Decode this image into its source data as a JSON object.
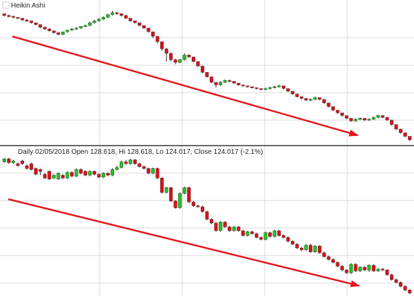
{
  "colors": {
    "up": "#22c322",
    "down": "#d6121b",
    "wick": "#222222",
    "grid": "#d9d9d9",
    "divider": "#333333",
    "trend_arrow": "#e3161d",
    "background": "#ffffff"
  },
  "chart_data": [
    {
      "type": "candlestick",
      "panel": "top",
      "title": "Heikin Ashi",
      "title_icon": "chart-settings-icon",
      "grid": true,
      "trend_arrow": {
        "direction": "down"
      },
      "series": [
        {
          "name": "",
          "open": [
            126.9,
            126.7,
            126.6,
            126.5,
            126.4,
            126.2,
            126.1,
            125.9,
            125.7,
            125.4,
            125.2,
            125.0,
            124.8,
            124.6,
            124.9,
            125.1,
            125.2,
            125.3,
            125.5,
            125.6,
            125.9,
            126.1,
            126.3,
            126.5,
            126.8,
            127.0,
            126.9,
            126.7,
            126.4,
            126.1,
            125.9,
            125.6,
            125.3,
            124.9,
            124.4,
            123.8,
            123.0,
            122.5,
            121.8,
            121.5,
            121.8,
            122.3,
            122.1,
            121.6,
            121.1,
            120.4,
            119.9,
            119.3,
            119.0,
            119.3,
            119.5,
            119.4,
            119.2,
            119.0,
            118.9,
            118.8,
            118.7,
            118.6,
            118.5,
            118.6,
            118.7,
            118.8,
            118.9,
            118.6,
            118.3,
            118.0,
            117.7,
            117.5,
            117.3,
            117.4,
            117.6,
            117.4,
            117.0,
            116.6,
            116.2,
            115.9,
            115.6,
            115.3,
            115.0,
            115.2,
            115.3,
            115.1,
            115.2,
            115.4,
            115.6,
            115.4,
            115.1,
            114.6,
            114.1,
            113.7,
            113.3
          ],
          "close": [
            126.7,
            126.6,
            126.5,
            126.4,
            126.2,
            126.1,
            125.9,
            125.7,
            125.4,
            125.2,
            125.0,
            124.8,
            124.6,
            124.9,
            125.1,
            125.2,
            125.3,
            125.5,
            125.6,
            125.9,
            126.1,
            126.3,
            126.5,
            126.8,
            127.0,
            126.9,
            126.7,
            126.4,
            126.1,
            125.9,
            125.6,
            125.3,
            124.9,
            124.4,
            123.8,
            123.0,
            122.5,
            121.8,
            121.5,
            121.8,
            122.3,
            122.1,
            121.6,
            121.1,
            120.4,
            119.9,
            119.3,
            119.0,
            119.3,
            119.5,
            119.4,
            119.2,
            119.0,
            118.9,
            118.8,
            118.7,
            118.6,
            118.5,
            118.6,
            118.7,
            118.8,
            118.9,
            118.6,
            118.3,
            118.0,
            117.7,
            117.5,
            117.3,
            117.4,
            117.6,
            117.4,
            117.0,
            116.6,
            116.2,
            115.9,
            115.6,
            115.3,
            115.0,
            115.2,
            115.3,
            115.1,
            115.2,
            115.4,
            115.6,
            115.4,
            115.1,
            114.6,
            114.1,
            113.7,
            113.3,
            112.9
          ],
          "high": [
            126.9,
            126.8,
            126.7,
            126.5,
            126.4,
            126.3,
            126.1,
            125.9,
            125.7,
            125.5,
            125.3,
            125.0,
            124.8,
            124.9,
            125.1,
            125.3,
            125.4,
            125.5,
            125.7,
            126.0,
            126.2,
            126.4,
            126.6,
            126.9,
            127.2,
            127.1,
            126.9,
            126.8,
            126.4,
            126.1,
            125.9,
            125.6,
            125.3,
            124.9,
            124.4,
            123.8,
            123.1,
            122.6,
            121.9,
            121.9,
            122.5,
            122.4,
            122.1,
            121.6,
            121.1,
            120.4,
            119.9,
            119.3,
            119.4,
            119.6,
            119.6,
            119.4,
            119.2,
            119.0,
            118.9,
            118.8,
            118.7,
            118.6,
            118.7,
            118.8,
            118.9,
            119.0,
            118.9,
            118.6,
            118.3,
            118.0,
            117.7,
            117.5,
            117.5,
            117.7,
            117.6,
            117.4,
            117.0,
            116.6,
            116.2,
            115.9,
            115.6,
            115.3,
            115.3,
            115.4,
            115.3,
            115.3,
            115.5,
            115.7,
            115.6,
            115.4,
            115.1,
            114.6,
            114.1,
            113.7,
            113.3
          ],
          "low": [
            126.6,
            126.5,
            126.4,
            126.3,
            126.1,
            126.0,
            125.8,
            125.6,
            125.3,
            125.1,
            124.9,
            124.7,
            124.5,
            124.5,
            124.8,
            125.0,
            125.1,
            125.2,
            125.4,
            125.5,
            125.8,
            126.0,
            126.2,
            126.4,
            126.7,
            126.8,
            126.6,
            126.3,
            126.0,
            125.8,
            125.5,
            125.2,
            124.8,
            124.2,
            123.6,
            122.8,
            121.6,
            121.6,
            121.3,
            121.4,
            121.7,
            122.0,
            121.5,
            121.0,
            120.3,
            119.8,
            119.2,
            118.7,
            118.9,
            119.2,
            119.3,
            119.1,
            118.9,
            118.8,
            118.7,
            118.6,
            118.5,
            118.4,
            118.4,
            118.5,
            118.6,
            118.7,
            118.5,
            118.2,
            117.9,
            117.6,
            117.4,
            117.2,
            117.2,
            117.3,
            117.3,
            116.9,
            116.5,
            116.1,
            115.8,
            115.5,
            115.2,
            114.9,
            114.9,
            115.1,
            115.0,
            115.0,
            115.1,
            115.3,
            115.3,
            115.0,
            114.5,
            114.0,
            113.6,
            113.2,
            112.8
          ]
        }
      ]
    },
    {
      "type": "candlestick",
      "panel": "bottom",
      "title": "Daily 02/05/2018 Open 128.618, Hi 128.618, Lo 124.017, Close 124.017 (-2.1%)",
      "grid": true,
      "trend_arrow": {
        "direction": "down"
      },
      "series": [
        {
          "name": "",
          "open": [
            126.6,
            126.9,
            126.5,
            126.4,
            126.7,
            126.2,
            126.4,
            125.9,
            125.8,
            125.3,
            125.6,
            124.9,
            124.8,
            125.2,
            124.9,
            125.5,
            125.1,
            125.8,
            125.6,
            125.2,
            125.6,
            125.3,
            125.0,
            125.4,
            125.2,
            125.8,
            126.0,
            126.6,
            126.4,
            126.8,
            126.4,
            126.1,
            125.9,
            125.4,
            125.9,
            124.9,
            123.4,
            123.9,
            122.5,
            121.8,
            123.3,
            123.9,
            122.4,
            122.0,
            121.9,
            121.4,
            120.6,
            120.2,
            119.4,
            120.3,
            119.8,
            119.4,
            119.8,
            119.4,
            118.9,
            119.3,
            119.1,
            118.7,
            118.5,
            119.2,
            118.8,
            119.4,
            118.9,
            118.7,
            118.3,
            118.0,
            117.6,
            117.4,
            117.9,
            117.2,
            117.8,
            117.1,
            116.7,
            116.4,
            116.1,
            115.7,
            115.3,
            115.0,
            115.9,
            115.2,
            115.6,
            115.3,
            115.8,
            115.2,
            115.4,
            115.3,
            114.8,
            114.3,
            114.0,
            113.6,
            113.2
          ],
          "close": [
            126.9,
            126.5,
            126.7,
            126.2,
            126.4,
            125.9,
            125.8,
            125.3,
            125.6,
            124.9,
            124.8,
            125.2,
            125.4,
            124.9,
            125.5,
            125.1,
            125.8,
            125.4,
            125.2,
            125.6,
            125.3,
            125.0,
            125.4,
            125.2,
            125.8,
            126.0,
            126.6,
            126.4,
            126.8,
            126.4,
            126.1,
            125.9,
            125.4,
            125.9,
            124.9,
            123.4,
            123.9,
            122.5,
            121.8,
            123.3,
            123.9,
            122.4,
            122.0,
            121.9,
            121.4,
            120.6,
            120.2,
            119.4,
            120.3,
            119.8,
            119.4,
            119.8,
            119.4,
            118.9,
            119.3,
            119.1,
            118.7,
            118.5,
            119.2,
            118.8,
            119.4,
            118.9,
            118.7,
            118.3,
            118.0,
            117.6,
            117.4,
            117.9,
            117.2,
            117.8,
            117.1,
            116.7,
            116.4,
            116.1,
            115.7,
            115.3,
            115.0,
            115.9,
            115.2,
            115.6,
            115.3,
            115.8,
            115.2,
            115.4,
            115.3,
            114.8,
            114.3,
            114.0,
            113.6,
            113.2,
            112.9
          ],
          "high": [
            127.0,
            127.0,
            126.8,
            126.5,
            126.8,
            126.3,
            126.5,
            126.0,
            125.9,
            125.4,
            125.7,
            125.3,
            125.5,
            125.3,
            125.6,
            125.6,
            125.9,
            125.9,
            125.7,
            125.7,
            125.7,
            125.4,
            125.5,
            125.5,
            125.9,
            126.2,
            126.7,
            126.8,
            126.9,
            126.9,
            126.5,
            126.2,
            126.0,
            126.0,
            126.0,
            125.0,
            124.0,
            124.0,
            122.6,
            123.4,
            124.0,
            124.0,
            122.5,
            122.1,
            122.0,
            121.5,
            120.7,
            120.3,
            120.4,
            120.4,
            119.9,
            119.9,
            119.9,
            119.5,
            119.4,
            119.4,
            119.2,
            118.8,
            119.3,
            119.3,
            119.5,
            119.5,
            119.0,
            118.8,
            118.4,
            118.1,
            117.7,
            118.0,
            118.0,
            117.9,
            117.9,
            117.2,
            116.8,
            116.5,
            116.2,
            115.8,
            115.4,
            116.0,
            116.0,
            115.7,
            115.7,
            115.9,
            115.9,
            115.5,
            115.5,
            115.4,
            114.9,
            114.4,
            114.1,
            113.7,
            113.3
          ],
          "low": [
            126.5,
            126.4,
            126.4,
            126.1,
            126.3,
            125.8,
            125.7,
            125.2,
            125.2,
            124.8,
            124.7,
            124.8,
            124.7,
            124.8,
            124.8,
            125.0,
            125.0,
            125.3,
            125.1,
            125.1,
            125.2,
            124.9,
            124.9,
            125.1,
            125.1,
            125.7,
            125.9,
            126.3,
            126.3,
            126.3,
            126.0,
            125.8,
            125.3,
            125.3,
            124.8,
            123.3,
            123.3,
            122.4,
            121.7,
            121.7,
            123.2,
            122.3,
            121.9,
            121.8,
            121.3,
            120.5,
            120.1,
            119.3,
            119.3,
            119.7,
            119.3,
            119.3,
            119.3,
            118.8,
            118.8,
            119.0,
            118.6,
            118.4,
            118.4,
            118.7,
            118.7,
            118.8,
            118.6,
            118.2,
            117.9,
            117.5,
            117.3,
            117.3,
            117.1,
            117.1,
            117.0,
            116.6,
            116.3,
            116.0,
            115.6,
            115.2,
            114.9,
            114.9,
            115.1,
            115.1,
            115.2,
            115.1,
            115.1,
            115.1,
            115.2,
            114.7,
            114.2,
            113.9,
            113.5,
            113.1,
            112.8
          ]
        }
      ]
    }
  ]
}
